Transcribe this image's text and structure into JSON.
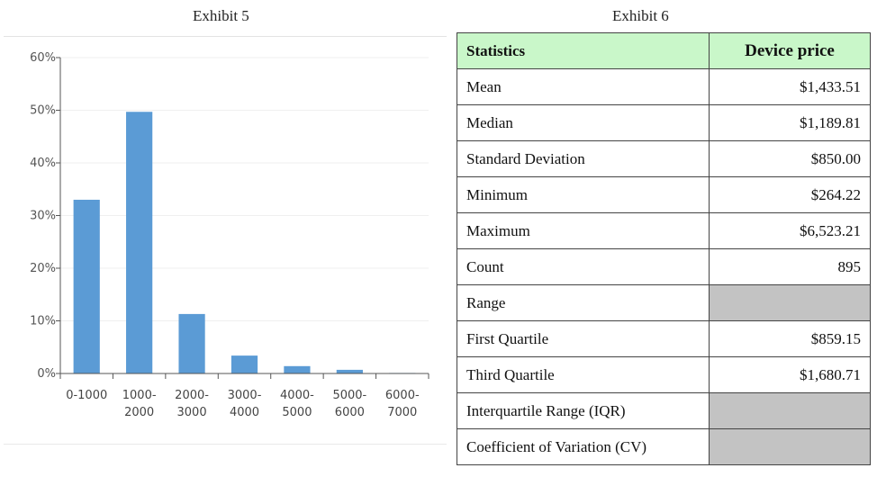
{
  "exhibit5": {
    "title": "Exhibit 5",
    "chart_data": {
      "type": "bar",
      "categories": [
        [
          "0-1000",
          ""
        ],
        [
          "1000-",
          "2000"
        ],
        [
          "2000-",
          "3000"
        ],
        [
          "3000-",
          "4000"
        ],
        [
          "4000-",
          "5000"
        ],
        [
          "5000-",
          "6000"
        ],
        [
          "6000-",
          "7000"
        ]
      ],
      "values": [
        33,
        49.7,
        11.3,
        3.4,
        1.4,
        0.7,
        0.1
      ],
      "unit": "%",
      "ylim": [
        0,
        60
      ],
      "yticks": [
        0,
        10,
        20,
        30,
        40,
        50,
        60
      ],
      "ytick_labels": [
        "0%",
        "10%",
        "20%",
        "30%",
        "40%",
        "50%",
        "60%"
      ],
      "bar_color": "#5b9bd5",
      "grid": true,
      "title": "",
      "xlabel": "",
      "ylabel": ""
    }
  },
  "exhibit6": {
    "title": "Exhibit 6",
    "headers": {
      "statistic": "Statistics",
      "price": "Device price"
    },
    "rows": [
      {
        "label": "Mean",
        "value": "$1,433.51"
      },
      {
        "label": "Median",
        "value": "$1,189.81"
      },
      {
        "label": "Standard Deviation",
        "value": "$850.00"
      },
      {
        "label": "Minimum",
        "value": "$264.22"
      },
      {
        "label": "Maximum",
        "value": "$6,523.21"
      },
      {
        "label": "Count",
        "value": "895"
      },
      {
        "label": "Range",
        "value": ""
      },
      {
        "label": "First Quartile",
        "value": "$859.15"
      },
      {
        "label": "Third Quartile",
        "value": "$1,680.71"
      },
      {
        "label": "Interquartile Range (IQR)",
        "value": ""
      },
      {
        "label": "Coefficient of Variation (CV)",
        "value": ""
      }
    ],
    "header_color": "#c9f7c9",
    "blank_cell_color": "#c3c3c3"
  }
}
